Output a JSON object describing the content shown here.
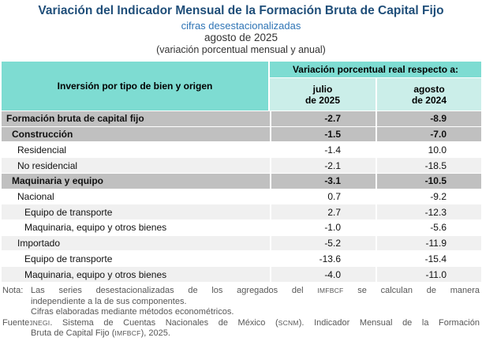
{
  "header": {
    "title": "Variación del Indicador Mensual de la Formación Bruta de Capital Fijo",
    "subtitle": "cifras desestacionalizadas",
    "period": "agosto de 2025",
    "measure_note": "(variación porcentual mensual y anual)"
  },
  "table": {
    "col_header_left": "Inversión por tipo de bien y origen",
    "col_header_group": "Variación porcentual real respecto a:",
    "col1": {
      "line1": "julio",
      "line2": "de 2025"
    },
    "col2": {
      "line1": "agosto",
      "line2": "de 2024"
    },
    "rows": [
      {
        "label": "Formación bruta de capital fijo",
        "julio": "-2.7",
        "agosto": "-8.9",
        "level": 1,
        "style": "aggregate"
      },
      {
        "label": "Construcción",
        "julio": "-1.5",
        "agosto": "-7.0",
        "level": 2,
        "style": "aggregate"
      },
      {
        "label": "Residencial",
        "julio": "-1.4",
        "agosto": "10.0",
        "level": 3,
        "style": "plain"
      },
      {
        "label": "No residencial",
        "julio": "-2.1",
        "agosto": "-18.5",
        "level": 3,
        "style": "alt"
      },
      {
        "label": "Maquinaria y equipo",
        "julio": "-3.1",
        "agosto": "-10.5",
        "level": 2,
        "style": "aggregate"
      },
      {
        "label": "Nacional",
        "julio": "0.7",
        "agosto": "-9.2",
        "level": 3,
        "style": "plain"
      },
      {
        "label": "Equipo de transporte",
        "julio": "2.7",
        "agosto": "-12.3",
        "level": 4,
        "style": "alt"
      },
      {
        "label": "Maquinaria, equipo y otros bienes",
        "julio": "-1.0",
        "agosto": "-5.6",
        "level": 4,
        "style": "plain"
      },
      {
        "label": "Importado",
        "julio": "-5.2",
        "agosto": "-11.9",
        "level": 3,
        "style": "alt"
      },
      {
        "label": "Equipo de transporte",
        "julio": "-13.6",
        "agosto": "-15.4",
        "level": 4,
        "style": "plain"
      },
      {
        "label": "Maquinaria, equipo y otros bienes",
        "julio": "-4.0",
        "agosto": "-11.0",
        "level": 4,
        "style": "alt"
      }
    ]
  },
  "footnotes": {
    "nota_label": "Nota:",
    "fuente_label": "Fuente:",
    "nota_lines": [
      {
        "stretch": true,
        "segments": [
          {
            "t": "Las series desestacionalizadas de los agregados del "
          },
          {
            "t": "IMFBCF",
            "caps": true
          },
          {
            "t": " se calculan de manera"
          }
        ]
      },
      {
        "stretch": false,
        "segments": [
          {
            "t": "independiente a la de sus componentes."
          }
        ]
      },
      {
        "stretch": false,
        "segments": [
          {
            "t": "Cifras elaboradas mediante métodos econométricos."
          }
        ]
      }
    ],
    "fuente_lines": [
      {
        "stretch": true,
        "segments": [
          {
            "t": "INEGI",
            "caps": true
          },
          {
            "t": ". Sistema de Cuentas Nacionales de México ("
          },
          {
            "t": "SCNM",
            "caps": true
          },
          {
            "t": "). Indicador Mensual de la Formación"
          }
        ]
      },
      {
        "stretch": false,
        "segments": [
          {
            "t": "Bruta de Capital Fijo ("
          },
          {
            "t": "IMFBCF",
            "caps": true
          },
          {
            "t": "), 2025."
          }
        ]
      }
    ]
  },
  "colors": {
    "title_navy": "#1F4E79",
    "subtitle_blue": "#2E74B5",
    "header_teal": "#7EDCD2",
    "header_teal_light": "#CBEEE9",
    "row_aggregate_gray": "#C0C0C0",
    "row_alt_gray": "#F0F0F0",
    "footnote_gray": "#575757"
  },
  "chart_data": {
    "type": "table",
    "title": "Variación del Indicador Mensual de la Formación Bruta de Capital Fijo, agosto de 2025 (variación porcentual mensual y anual, cifras desestacionalizadas)",
    "columns": [
      "Inversión por tipo de bien y origen",
      "julio de 2025",
      "agosto de 2024"
    ],
    "rows": [
      [
        "Formación bruta de capital fijo",
        -2.7,
        -8.9
      ],
      [
        "Construcción",
        -1.5,
        -7.0
      ],
      [
        "Residencial",
        -1.4,
        10.0
      ],
      [
        "No residencial",
        -2.1,
        -18.5
      ],
      [
        "Maquinaria y equipo",
        -3.1,
        -10.5
      ],
      [
        "Nacional",
        0.7,
        -9.2
      ],
      [
        "Equipo de transporte",
        2.7,
        -12.3
      ],
      [
        "Maquinaria, equipo y otros bienes",
        -1.0,
        -5.6
      ],
      [
        "Importado",
        -5.2,
        -11.9
      ],
      [
        "Equipo de transporte",
        -13.6,
        -15.4
      ],
      [
        "Maquinaria, equipo y otros bienes",
        -4.0,
        -11.0
      ]
    ]
  }
}
